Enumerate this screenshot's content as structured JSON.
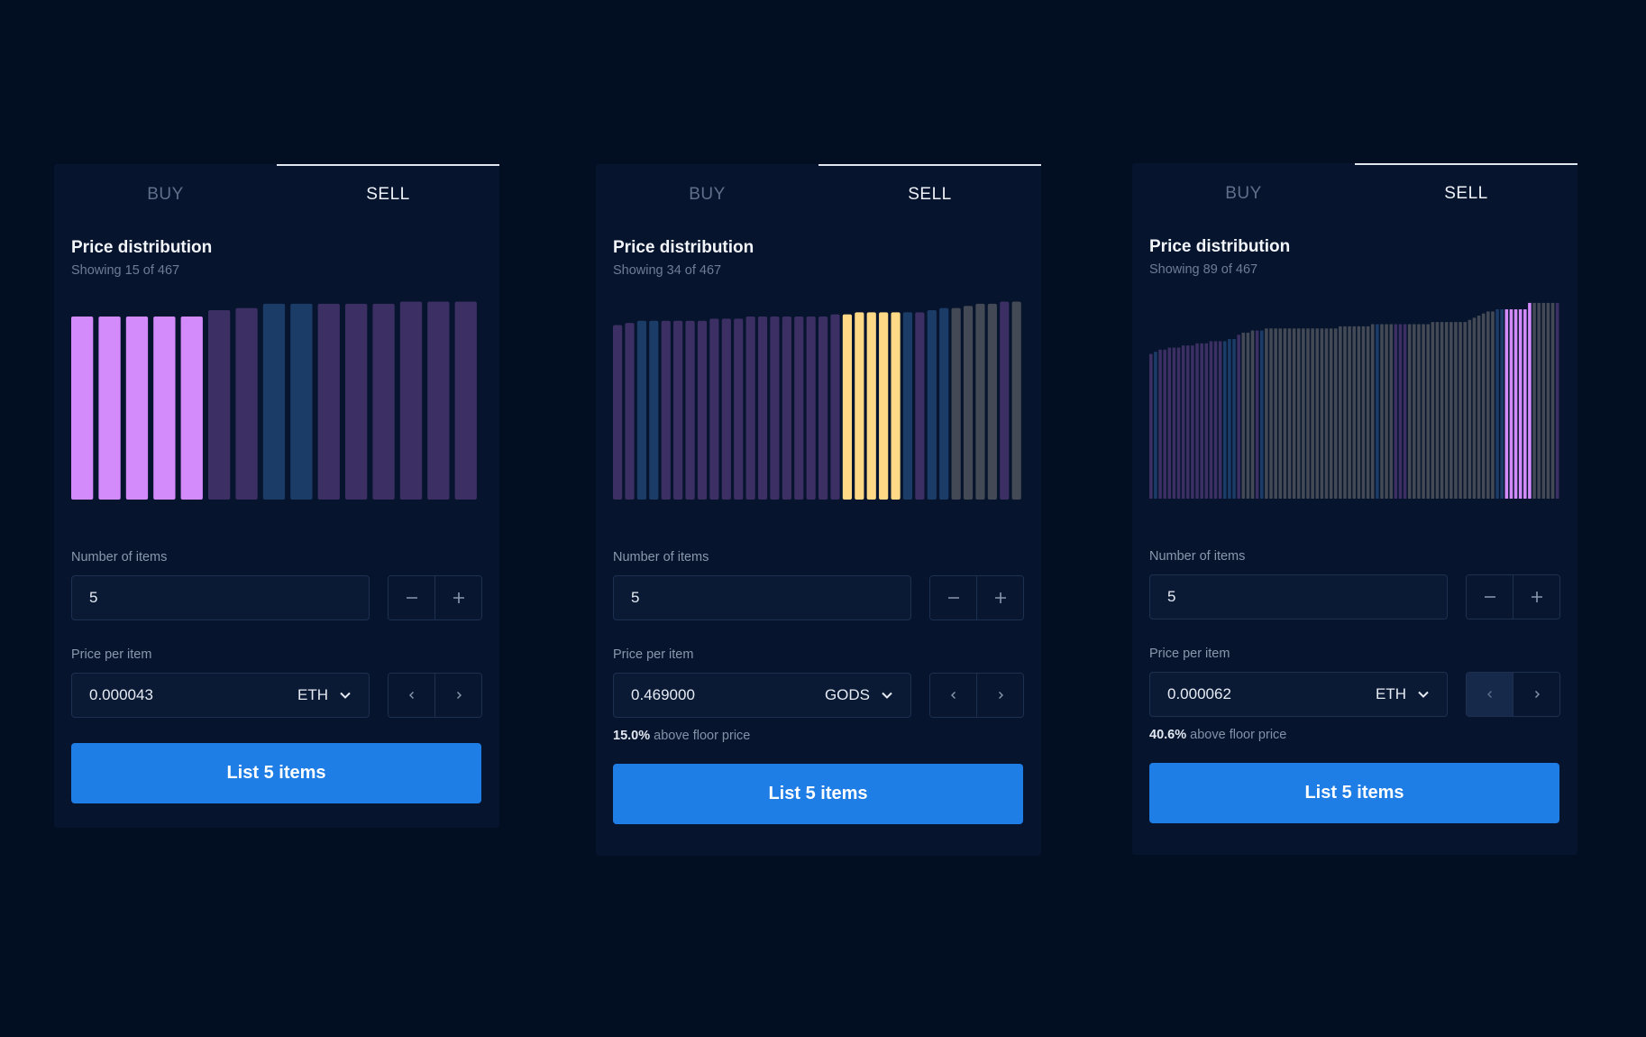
{
  "panels": [
    {
      "tabs": {
        "buy": "BUY",
        "sell": "SELL",
        "active": "sell"
      },
      "title": "Price distribution",
      "subtitle": "Showing 15 of 467",
      "items_label": "Number of items",
      "items_value": "5",
      "price_label": "Price per item",
      "price_value": "0.000043",
      "currency": "ETH",
      "above_floor_value": "",
      "above_floor_text": "",
      "cta_label": "List 5 items",
      "chart_data": {
        "type": "bar",
        "values": [
          86,
          86,
          86,
          86,
          86,
          89,
          90,
          92,
          92,
          92,
          92,
          92,
          93,
          93,
          93
        ],
        "colors": [
          "#d38bfb",
          "#d38bfb",
          "#d38bfb",
          "#d38bfb",
          "#d38bfb",
          "#3b2f63",
          "#3b2f63",
          "#1c3c68",
          "#1c3c68",
          "#3b2f63",
          "#3b2f63",
          "#3b2f63",
          "#3b2f63",
          "#3b2f63",
          "#3b2f63"
        ],
        "ylim": [
          0,
          100
        ]
      }
    },
    {
      "tabs": {
        "buy": "BUY",
        "sell": "SELL",
        "active": "sell"
      },
      "title": "Price distribution",
      "subtitle": "Showing 34 of 467",
      "items_label": "Number of items",
      "items_value": "5",
      "price_label": "Price per item",
      "price_value": "0.469000",
      "currency": "GODS",
      "above_floor_value": "15.0%",
      "above_floor_text": " above floor price",
      "cta_label": "List 5 items",
      "chart_data": {
        "type": "bar",
        "values": [
          82,
          83,
          84,
          84,
          84,
          84,
          84,
          84,
          85,
          85,
          85,
          86,
          86,
          86,
          86,
          86,
          86,
          86,
          87,
          87,
          88,
          88,
          88,
          88,
          88,
          88,
          89,
          90,
          90,
          91,
          92,
          92,
          93,
          93
        ],
        "colors": [
          "#3b2f63",
          "#3b2f63",
          "#1c3c68",
          "#1c3c68",
          "#3b2f63",
          "#3b2f63",
          "#3b2f63",
          "#3b2f63",
          "#3b2f63",
          "#3b2f63",
          "#3b2f63",
          "#3b2f63",
          "#3b2f63",
          "#3b2f63",
          "#3b2f63",
          "#3b2f63",
          "#3b2f63",
          "#3b2f63",
          "#3b2f63",
          "#ffd985",
          "#ffd985",
          "#ffd985",
          "#ffd985",
          "#ffd985",
          "#1c3c68",
          "#3b2f63",
          "#1c3c68",
          "#1c3c68",
          "#434a55",
          "#434a55",
          "#434a55",
          "#434a55",
          "#3b2f63",
          "#434a55"
        ],
        "ylim": [
          0,
          100
        ]
      }
    },
    {
      "tabs": {
        "buy": "BUY",
        "sell": "SELL",
        "active": "sell"
      },
      "title": "Price distribution",
      "subtitle": "Showing 89 of 467",
      "items_label": "Number of items",
      "items_value": "5",
      "price_label": "Price per item",
      "price_value": "0.000062",
      "currency": "ETH",
      "above_floor_value": "40.6%",
      "above_floor_text": " above floor price",
      "cta_label": "List 5 items",
      "chart_data": {
        "type": "bar",
        "values": [
          68,
          69,
          70,
          70,
          71,
          71,
          71,
          72,
          72,
          72,
          73,
          73,
          73,
          74,
          74,
          74,
          74,
          75,
          75,
          77,
          78,
          78,
          79,
          79,
          79,
          80,
          80,
          80,
          80,
          80,
          80,
          80,
          80,
          80,
          80,
          80,
          80,
          80,
          80,
          80,
          80,
          81,
          81,
          81,
          81,
          81,
          81,
          81,
          82,
          82,
          82,
          82,
          82,
          82,
          82,
          82,
          82,
          82,
          82,
          82,
          82,
          83,
          83,
          83,
          83,
          83,
          83,
          83,
          83,
          84,
          85,
          86,
          87,
          88,
          88,
          89,
          89,
          89,
          89,
          89,
          89,
          89,
          92,
          92,
          92,
          92,
          92,
          92,
          92
        ],
        "colors": [
          "#3b2f63",
          "#1c3c68",
          "#3b2f63",
          "#3b2f63",
          "#3b2f63",
          "#3b2f63",
          "#3b2f63",
          "#3b2f63",
          "#3b2f63",
          "#3b2f63",
          "#3b2f63",
          "#3b2f63",
          "#3b2f63",
          "#3b2f63",
          "#3b2f63",
          "#3b2f63",
          "#1c3c68",
          "#1c3c68",
          "#1c3c68",
          "#3b2f63",
          "#434a55",
          "#434a55",
          "#434a55",
          "#3b2f63",
          "#1c3c68",
          "#434a55",
          "#434a55",
          "#434a55",
          "#434a55",
          "#434a55",
          "#434a55",
          "#434a55",
          "#434a55",
          "#434a55",
          "#434a55",
          "#434a55",
          "#434a55",
          "#434a55",
          "#434a55",
          "#434a55",
          "#434a55",
          "#434a55",
          "#434a55",
          "#434a55",
          "#434a55",
          "#434a55",
          "#434a55",
          "#434a55",
          "#434a55",
          "#1c3c68",
          "#434a55",
          "#434a55",
          "#434a55",
          "#3b2f63",
          "#3b2f63",
          "#3b2f63",
          "#434a55",
          "#434a55",
          "#434a55",
          "#434a55",
          "#434a55",
          "#434a55",
          "#434a55",
          "#434a55",
          "#434a55",
          "#434a55",
          "#434a55",
          "#434a55",
          "#434a55",
          "#434a55",
          "#434a55",
          "#434a55",
          "#434a55",
          "#434a55",
          "#434a55",
          "#1c3c68",
          "#1c3c68",
          "#d38bfb",
          "#d38bfb",
          "#d38bfb",
          "#d38bfb",
          "#d38bfb",
          "#d38bfb",
          "#434a55",
          "#434a55",
          "#434a55",
          "#434a55",
          "#434a55",
          "#3b2f63"
        ],
        "ylim": [
          0,
          100
        ]
      }
    }
  ],
  "icons": {
    "minus": "minus-icon",
    "plus": "plus-icon",
    "prev": "chevron-left-icon",
    "next": "chevron-right-icon",
    "dropdown": "chevron-down-icon"
  },
  "accent_color": "#1f7de6"
}
